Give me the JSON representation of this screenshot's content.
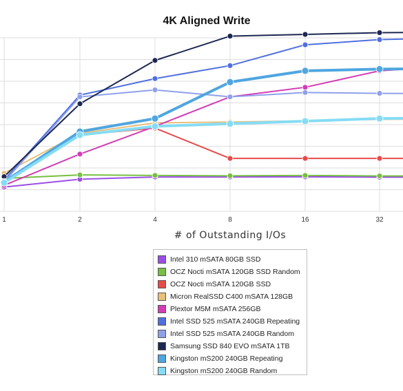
{
  "chart_data": {
    "type": "line",
    "title": "4K Aligned Write",
    "xlabel": "# of Outstanding I/Os",
    "ylabel": "",
    "x": [
      "1",
      "2",
      "4",
      "8",
      "16",
      "32"
    ],
    "grid": true,
    "legend_placement": "bottom-center",
    "ylim": [
      0,
      100
    ],
    "series": [
      {
        "name": "Intel 310 mSATA 80GB SSD",
        "color": "#9b4ee6",
        "values": [
          14,
          18.5,
          19.8,
          19.8,
          19.9,
          19.7
        ]
      },
      {
        "name": "OCZ Nocti mSATA 120GB SSD Random",
        "color": "#77c043",
        "values": [
          19,
          21,
          20.7,
          20.5,
          20.7,
          20.4
        ]
      },
      {
        "name": "OCZ Nocti mSATA 120GB SSD",
        "color": "#e84a4a",
        "values": [
          17,
          44,
          48,
          30.5,
          30.5,
          30.5
        ]
      },
      {
        "name": "Micron RealSSD C400 mSATA 128GB",
        "color": "#e8c07a",
        "values": [
          22,
          45,
          51,
          51.5,
          52.2,
          53
        ]
      },
      {
        "name": "Plextor M5M mSATA 256GB",
        "color": "#d23db5",
        "values": [
          15,
          33,
          49,
          66,
          71.5,
          81
        ]
      },
      {
        "name": "Intel SSD 525 mSATA 240GB Repeating",
        "color": "#4f6fe0",
        "values": [
          18,
          67,
          76.5,
          84,
          96,
          99
        ]
      },
      {
        "name": "Intel SSD 525 mSATA 240GB Random",
        "color": "#8fa0ea",
        "values": [
          17,
          66,
          70,
          66,
          68.5,
          68
        ]
      },
      {
        "name": "Samsung SSD 840 EVO mSATA 1TB",
        "color": "#1c2752",
        "values": [
          20,
          62,
          87,
          101,
          102,
          103
        ]
      },
      {
        "name": "Kingston mS200 240GB Repeating",
        "color": "#4fa6e0",
        "values": [
          17,
          46,
          53.5,
          74.5,
          81,
          82
        ]
      },
      {
        "name": "Kingston mS200 240GB Random",
        "color": "#86dcf5",
        "values": [
          16.5,
          44,
          49,
          50.5,
          52,
          53.5
        ]
      }
    ]
  }
}
